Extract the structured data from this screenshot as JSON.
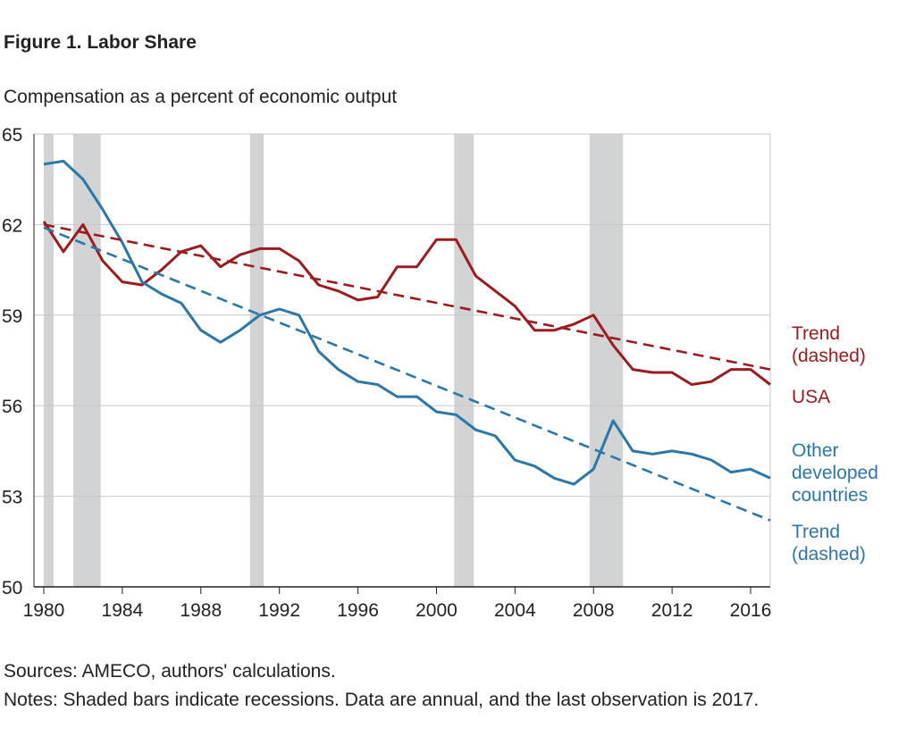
{
  "chart_data": {
    "type": "line",
    "title": "Figure 1. Labor Share",
    "subtitle": "Compensation as a percent of economic output",
    "ylim": [
      50,
      65
    ],
    "yticks": [
      50,
      53,
      56,
      59,
      62,
      65
    ],
    "xlim": [
      1979.5,
      2017
    ],
    "xticks": [
      1980,
      1984,
      1988,
      1992,
      1996,
      2000,
      2004,
      2008,
      2012,
      2016
    ],
    "grid": true,
    "recessions": [
      [
        1980.0,
        1980.5
      ],
      [
        1981.5,
        1982.9
      ],
      [
        1990.5,
        1991.2
      ],
      [
        2000.9,
        2001.9
      ],
      [
        2007.8,
        2009.5
      ]
    ],
    "x": [
      1980,
      1981,
      1982,
      1983,
      1984,
      1985,
      1986,
      1987,
      1988,
      1989,
      1990,
      1991,
      1992,
      1993,
      1994,
      1995,
      1996,
      1997,
      1998,
      1999,
      2000,
      2001,
      2002,
      2003,
      2004,
      2005,
      2006,
      2007,
      2008,
      2009,
      2010,
      2011,
      2012,
      2013,
      2014,
      2015,
      2016,
      2017
    ],
    "series": [
      {
        "name": "USA",
        "color": "#9b1c20",
        "dashed": false,
        "values": [
          62.1,
          61.1,
          62.0,
          60.8,
          60.1,
          60.0,
          60.5,
          61.1,
          61.3,
          60.6,
          61.0,
          61.2,
          61.2,
          60.8,
          60.0,
          59.8,
          59.5,
          59.6,
          60.6,
          60.6,
          61.5,
          61.5,
          60.3,
          59.8,
          59.3,
          58.5,
          58.5,
          58.7,
          59.0,
          58.0,
          57.2,
          57.1,
          57.1,
          56.7,
          56.8,
          57.2,
          57.2,
          56.7
        ]
      },
      {
        "name": "Other developed countries",
        "color": "#2c76a8",
        "dashed": false,
        "values": [
          64.0,
          64.1,
          63.5,
          62.5,
          61.4,
          60.1,
          59.7,
          59.4,
          58.5,
          58.1,
          58.5,
          59.0,
          59.2,
          59.0,
          57.8,
          57.2,
          56.8,
          56.7,
          56.3,
          56.3,
          55.8,
          55.7,
          55.2,
          55.0,
          54.2,
          54.0,
          53.6,
          53.4,
          53.9,
          55.5,
          54.5,
          54.4,
          54.5,
          54.4,
          54.2,
          53.8,
          53.9,
          53.6
        ]
      },
      {
        "name": "Trend (dashed)",
        "color": "#9b1c20",
        "dashed": true,
        "x": [
          1980,
          2017
        ],
        "values": [
          62.0,
          57.2
        ]
      },
      {
        "name": "Trend (dashed)",
        "color": "#2c76a8",
        "dashed": true,
        "x": [
          1980,
          2017
        ],
        "values": [
          61.9,
          52.2
        ]
      }
    ],
    "labels": {
      "usa_trend": [
        "Trend",
        "(dashed)"
      ],
      "usa": "USA",
      "other": [
        "Other",
        "developed",
        "countries"
      ],
      "other_trend": [
        "Trend",
        "(dashed)"
      ]
    },
    "sources": "Sources: AMECO, authors' calculations.",
    "notes": "Notes: Shaded bars indicate recessions. Data are annual, and the last observation is 2017."
  }
}
